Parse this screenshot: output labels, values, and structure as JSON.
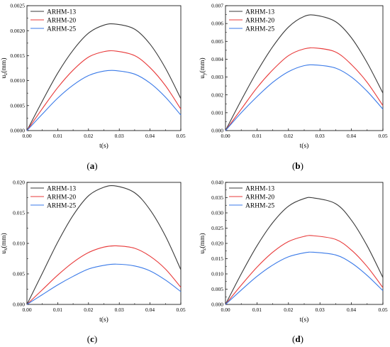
{
  "chart_data": [
    {
      "type": "line",
      "panel_label": "(a)",
      "xlabel": "t(s)",
      "ylabel": "u_z(mm)",
      "ylabel_main": "u",
      "ylabel_sub": "z",
      "ylabel_unit": "(mm)",
      "xlim": [
        0,
        0.05
      ],
      "ylim": [
        0,
        0.0025
      ],
      "x_ticks": [
        "0.00",
        "0.01",
        "0.02",
        "0.03",
        "0.04",
        "0.05"
      ],
      "y_ticks": [
        "0.0000",
        "0.0005",
        "0.0010",
        "0.0015",
        "0.0020",
        "0.0025"
      ],
      "legend_position": "top-left",
      "x": [
        0,
        0.005,
        0.01,
        0.015,
        0.02,
        0.025,
        0.029,
        0.035,
        0.04,
        0.045,
        0.05
      ],
      "series": [
        {
          "name": "ARHM-13",
          "color": "#3a3a3a",
          "values": [
            0,
            0.00059,
            0.00115,
            0.00161,
            0.00195,
            0.00211,
            0.00213,
            0.00203,
            0.00173,
            0.00125,
            0.00064
          ]
        },
        {
          "name": "ARHM-20",
          "color": "#e83a3a",
          "values": [
            0,
            0.00044,
            0.00086,
            0.00121,
            0.00147,
            0.00158,
            0.00159,
            0.0015,
            0.00126,
            0.0009,
            0.00043
          ]
        },
        {
          "name": "ARHM-25",
          "color": "#3a7ae8",
          "values": [
            0,
            0.00033,
            0.00065,
            0.00091,
            0.0011,
            0.00119,
            0.0012,
            0.00113,
            0.00095,
            0.00067,
            0.00031
          ]
        }
      ]
    },
    {
      "type": "line",
      "panel_label": "(b)",
      "xlabel": "t(s)",
      "ylabel": "u_y(mm)",
      "ylabel_main": "u",
      "ylabel_sub": "y",
      "ylabel_unit": "(mm)",
      "xlim": [
        0,
        0.05
      ],
      "ylim": [
        0,
        0.007
      ],
      "x_ticks": [
        "0.00",
        "0.01",
        "0.02",
        "0.03",
        "0.04",
        "0.05"
      ],
      "y_ticks": [
        "0.000",
        "0.001",
        "0.002",
        "0.003",
        "0.004",
        "0.005",
        "0.006",
        "0.007"
      ],
      "legend_position": "top-left",
      "x": [
        0,
        0.005,
        0.01,
        0.015,
        0.02,
        0.025,
        0.029,
        0.035,
        0.04,
        0.045,
        0.05
      ],
      "series": [
        {
          "name": "ARHM-13",
          "color": "#3a3a3a",
          "values": [
            0,
            0.0017,
            0.0033,
            0.0047,
            0.0058,
            0.0064,
            0.00645,
            0.0061,
            0.0052,
            0.0038,
            0.0021
          ]
        },
        {
          "name": "ARHM-20",
          "color": "#e83a3a",
          "values": [
            0,
            0.0012,
            0.0024,
            0.0034,
            0.0042,
            0.00458,
            0.00462,
            0.0044,
            0.0037,
            0.0027,
            0.0014
          ]
        },
        {
          "name": "ARHM-25",
          "color": "#3a7ae8",
          "values": [
            0,
            0.001,
            0.0019,
            0.0027,
            0.0033,
            0.00364,
            0.00367,
            0.0035,
            0.003,
            0.0022,
            0.0012
          ]
        }
      ]
    },
    {
      "type": "line",
      "panel_label": "(c)",
      "xlabel": "t(s)",
      "ylabel": "u_x(mm)",
      "ylabel_main": "u",
      "ylabel_sub": "x",
      "ylabel_unit": "(mm)",
      "xlim": [
        0,
        0.05
      ],
      "ylim": [
        0,
        0.02
      ],
      "x_ticks": [
        "0.00",
        "0.01",
        "0.02",
        "0.03",
        "0.04",
        "0.05"
      ],
      "y_ticks": [
        "0.000",
        "0.005",
        "0.010",
        "0.015",
        "0.020"
      ],
      "legend_position": "top-left",
      "x": [
        0,
        0.005,
        0.01,
        0.015,
        0.02,
        0.025,
        0.029,
        0.035,
        0.04,
        0.045,
        0.05
      ],
      "series": [
        {
          "name": "ARHM-13",
          "color": "#3a3a3a",
          "values": [
            0,
            0.0051,
            0.0102,
            0.0146,
            0.0178,
            0.0192,
            0.0194,
            0.0183,
            0.0155,
            0.0112,
            0.0057
          ]
        },
        {
          "name": "ARHM-20",
          "color": "#e83a3a",
          "values": [
            0,
            0.0024,
            0.0048,
            0.0069,
            0.0085,
            0.0094,
            0.0096,
            0.0092,
            0.0079,
            0.0058,
            0.0028
          ]
        },
        {
          "name": "ARHM-25",
          "color": "#3a7ae8",
          "values": [
            0,
            0.0016,
            0.0032,
            0.0046,
            0.0058,
            0.0064,
            0.0066,
            0.0063,
            0.0055,
            0.004,
            0.0021
          ]
        }
      ]
    },
    {
      "type": "line",
      "panel_label": "(d)",
      "xlabel": "t(s)",
      "ylabel": "u_z(mm)",
      "ylabel_main": "u",
      "ylabel_sub": "z",
      "ylabel_unit": "(mm)",
      "xlim": [
        0,
        0.05
      ],
      "ylim": [
        0,
        0.04
      ],
      "x_ticks": [
        "0.00",
        "0.01",
        "0.02",
        "0.03",
        "0.04",
        "0.05"
      ],
      "y_ticks": [
        "0.000",
        "0.005",
        "0.010",
        "0.015",
        "0.020",
        "0.025",
        "0.030",
        "0.035",
        "0.040"
      ],
      "legend_position": "top-left",
      "x": [
        0,
        0.005,
        0.01,
        0.015,
        0.02,
        0.025,
        0.028,
        0.035,
        0.04,
        0.045,
        0.05
      ],
      "series": [
        {
          "name": "ARHM-13",
          "color": "#3a3a3a",
          "values": [
            0,
            0.01,
            0.0192,
            0.0268,
            0.0322,
            0.0347,
            0.0349,
            0.033,
            0.0276,
            0.0192,
            0.0088
          ]
        },
        {
          "name": "ARHM-20",
          "color": "#e83a3a",
          "values": [
            0,
            0.0063,
            0.0122,
            0.0171,
            0.0206,
            0.0223,
            0.0225,
            0.0213,
            0.0178,
            0.0124,
            0.0055
          ]
        },
        {
          "name": "ARHM-25",
          "color": "#3a7ae8",
          "values": [
            0,
            0.0047,
            0.0092,
            0.0129,
            0.0156,
            0.0169,
            0.0171,
            0.0162,
            0.0136,
            0.0095,
            0.0045
          ]
        }
      ]
    }
  ]
}
